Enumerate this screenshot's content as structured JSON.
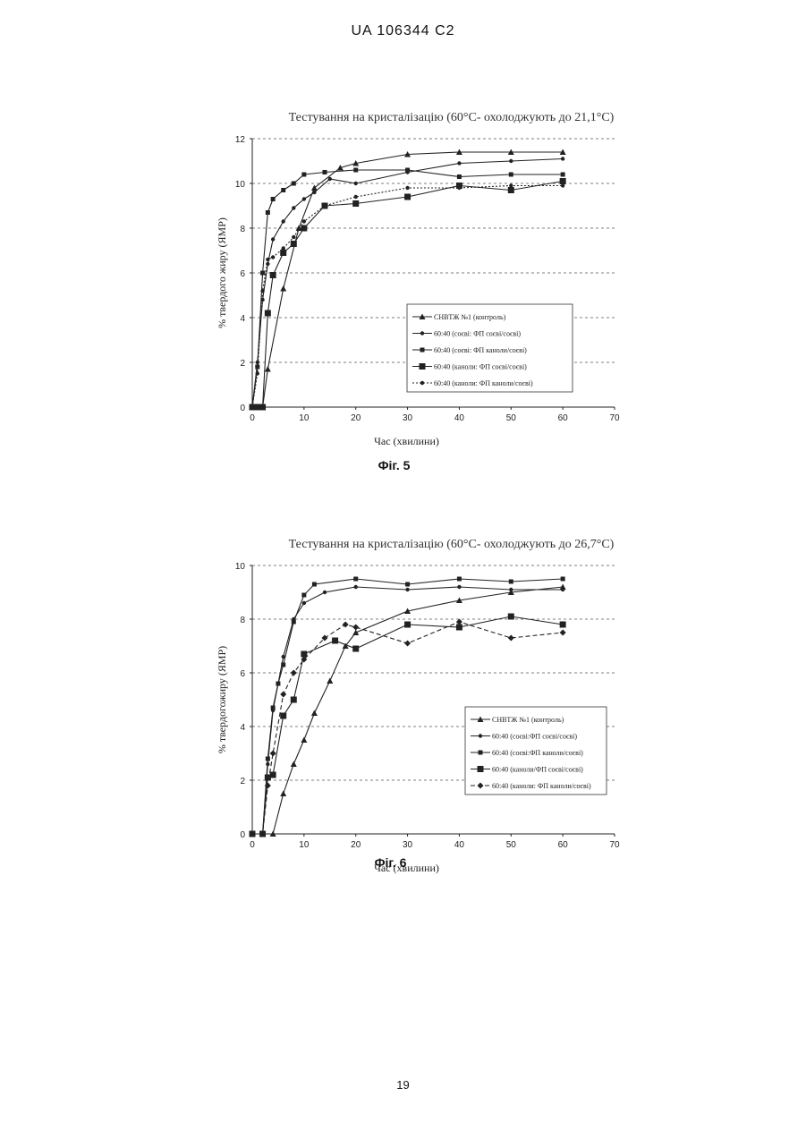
{
  "header": {
    "text": "UA   106344   C2"
  },
  "figures": [
    {
      "label": "Фіг. 5"
    },
    {
      "label": "Фіг. 6"
    }
  ],
  "page_number": "19",
  "chart_data": [
    {
      "type": "line",
      "title": "Тестування на кристалізацію (60°C- охолоджують до 21,1°C)",
      "xlabel": "Час (хвилини)",
      "ylabel": "% твердого жиру (ЯМР)",
      "xlim": [
        0,
        70
      ],
      "ylim": [
        0,
        12
      ],
      "xticks": [
        0,
        10,
        20,
        30,
        40,
        50,
        60,
        70
      ],
      "yticks": [
        0,
        2,
        4,
        6,
        8,
        10,
        12
      ],
      "grid": "horizontal dashed",
      "legend_position": "bottom-right",
      "series": [
        {
          "name": "СНВТЖ №1 (контроль)",
          "marker": "triangle",
          "dash": "solid",
          "x": [
            0,
            1,
            2,
            3,
            6,
            9,
            12,
            17,
            20,
            30,
            40,
            50,
            60
          ],
          "y": [
            0,
            0,
            0,
            1.7,
            5.3,
            8.0,
            9.8,
            10.7,
            10.9,
            11.3,
            11.4,
            11.4,
            11.4
          ]
        },
        {
          "name": "60:40 (соєві: ФП соєві/соєві)",
          "marker": "dot",
          "dash": "solid",
          "x": [
            0,
            1,
            2,
            3,
            4,
            6,
            8,
            10,
            12,
            15,
            20,
            30,
            40,
            50,
            60
          ],
          "y": [
            0,
            2.0,
            4.8,
            6.4,
            7.5,
            8.3,
            8.9,
            9.3,
            9.6,
            10.2,
            10.0,
            10.5,
            10.9,
            11.0,
            11.1
          ]
        },
        {
          "name": "60:40 (соєві: ФП каноли/соєві)",
          "marker": "square-small",
          "dash": "solid",
          "x": [
            0,
            1,
            2,
            3,
            4,
            6,
            8,
            10,
            14,
            20,
            30,
            40,
            50,
            60
          ],
          "y": [
            0,
            1.8,
            6.0,
            8.7,
            9.3,
            9.7,
            10.0,
            10.4,
            10.5,
            10.6,
            10.6,
            10.3,
            10.4,
            10.4
          ]
        },
        {
          "name": "60:40 (каноли: ФП соєві/соєві)",
          "marker": "square",
          "dash": "solid",
          "x": [
            0,
            1,
            2,
            3,
            4,
            6,
            8,
            10,
            14,
            20,
            30,
            40,
            50,
            60
          ],
          "y": [
            0,
            0,
            0,
            4.2,
            5.9,
            6.9,
            7.3,
            8.0,
            9.0,
            9.1,
            9.4,
            9.9,
            9.7,
            10.1
          ]
        },
        {
          "name": "60:40 (каноли: ФП каноли/соєві)",
          "marker": "dot",
          "dash": "dotted",
          "x": [
            0,
            1,
            2,
            3,
            4,
            6,
            8,
            10,
            14,
            20,
            30,
            40,
            50,
            60
          ],
          "y": [
            0,
            1.5,
            5.2,
            6.6,
            6.7,
            7.1,
            7.6,
            8.3,
            9.0,
            9.4,
            9.8,
            9.8,
            9.9,
            9.9
          ]
        }
      ]
    },
    {
      "type": "line",
      "title": "Тестування на кристалізацію (60°C- охолоджують до 26,7°C)",
      "xlabel": "Час (хвилини)",
      "ylabel": "% твердогожиру (ЯМР)",
      "xlim": [
        0,
        70
      ],
      "ylim": [
        0,
        10
      ],
      "xticks": [
        0,
        10,
        20,
        30,
        40,
        50,
        60,
        70
      ],
      "yticks": [
        0,
        2,
        4,
        6,
        8,
        10
      ],
      "grid": "horizontal dashed",
      "legend_position": "bottom-right",
      "series": [
        {
          "name": "СНВТЖ №1 (контроль)",
          "marker": "triangle",
          "dash": "solid",
          "x": [
            0,
            2,
            4,
            6,
            8,
            10,
            12,
            15,
            18,
            20,
            30,
            40,
            50,
            60
          ],
          "y": [
            0,
            0,
            0,
            1.5,
            2.6,
            3.5,
            4.5,
            5.7,
            7.0,
            7.5,
            8.3,
            8.7,
            9.0,
            9.2
          ]
        },
        {
          "name": "60:40 (соєві:ФП соєві/соєві)",
          "marker": "dot",
          "dash": "solid",
          "x": [
            0,
            2,
            3,
            4,
            5,
            6,
            8,
            10,
            14,
            20,
            30,
            40,
            50,
            60
          ],
          "y": [
            0,
            0,
            2.6,
            4.6,
            5.6,
            6.6,
            8.0,
            8.6,
            9.0,
            9.2,
            9.1,
            9.2,
            9.1,
            9.1
          ]
        },
        {
          "name": "60:40 (соєві:ФП каноли/соєві)",
          "marker": "square-small",
          "dash": "solid",
          "x": [
            0,
            2,
            3,
            4,
            5,
            6,
            8,
            10,
            12,
            20,
            30,
            40,
            50,
            60
          ],
          "y": [
            0,
            0,
            2.8,
            4.7,
            5.6,
            6.3,
            7.9,
            8.9,
            9.3,
            9.5,
            9.3,
            9.5,
            9.4,
            9.5
          ]
        },
        {
          "name": "60:40 (каноли/ФП соєві/соєві)",
          "marker": "square",
          "dash": "solid",
          "x": [
            0,
            2,
            3,
            4,
            6,
            8,
            10,
            16,
            20,
            30,
            40,
            50,
            60
          ],
          "y": [
            0,
            0,
            2.1,
            2.2,
            4.4,
            5.0,
            6.7,
            7.2,
            6.9,
            7.8,
            7.7,
            8.1,
            7.8
          ]
        },
        {
          "name": "60:40 (каноли: ФП каноли/соєві)",
          "marker": "diamond",
          "dash": "dashed",
          "x": [
            0,
            2,
            3,
            4,
            6,
            8,
            10,
            14,
            18,
            20,
            30,
            40,
            50,
            60
          ],
          "y": [
            0,
            0,
            1.8,
            3.0,
            5.2,
            6.0,
            6.5,
            7.3,
            7.8,
            7.7,
            7.1,
            7.9,
            7.3,
            7.5
          ]
        }
      ]
    }
  ]
}
